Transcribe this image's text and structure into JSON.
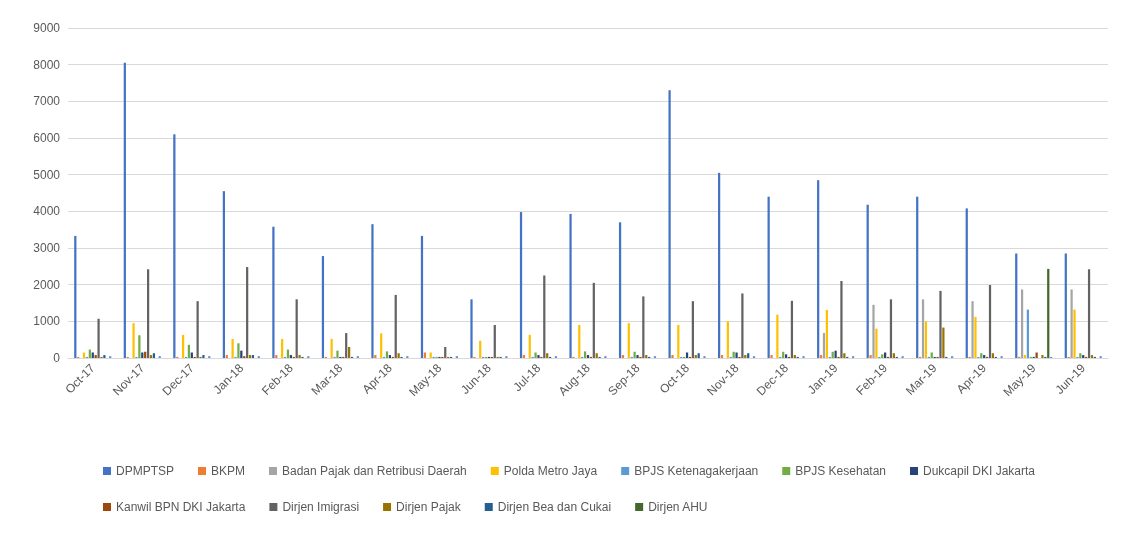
{
  "chart_data": {
    "type": "bar",
    "categories": [
      "Oct-17",
      "Nov-17",
      "Dec-17",
      "Jan-18",
      "Feb-18",
      "Mar-18",
      "Apr-18",
      "May-18",
      "Jun-18",
      "Jul-18",
      "Aug-18",
      "Sep-18",
      "Oct-18",
      "Nov-18",
      "Dec-18",
      "Jan-19",
      "Feb-19",
      "Mar-19",
      "Apr-19",
      "May-19",
      "Jun-19"
    ],
    "series": [
      {
        "name": "DPMPTSP",
        "color": "#4472c4",
        "values": [
          3330,
          8050,
          6100,
          4550,
          3580,
          2780,
          3650,
          3330,
          1600,
          3980,
          3930,
          3700,
          7300,
          5050,
          4400,
          4850,
          4180,
          4400,
          4080,
          2850,
          2850
        ]
      },
      {
        "name": "BKPM",
        "color": "#ed7d31",
        "values": [
          30,
          30,
          30,
          80,
          80,
          30,
          80,
          150,
          30,
          80,
          30,
          80,
          80,
          80,
          80,
          80,
          80,
          30,
          30,
          30,
          30
        ]
      },
      {
        "name": "Badan Pajak dan Retribusi Daerah",
        "color": "#a5a5a5",
        "values": [
          0,
          0,
          0,
          0,
          0,
          0,
          0,
          0,
          0,
          0,
          0,
          0,
          0,
          0,
          0,
          680,
          1450,
          1600,
          1550,
          1870,
          1870
        ]
      },
      {
        "name": "Polda Metro Jaya",
        "color": "#ffc000",
        "values": [
          150,
          950,
          630,
          520,
          520,
          520,
          670,
          150,
          470,
          630,
          900,
          950,
          900,
          1000,
          1180,
          1310,
          800,
          1000,
          1120,
          80,
          1320
        ]
      },
      {
        "name": "BPJS Ketenagakerjaan",
        "color": "#5b9bd5",
        "values": [
          30,
          30,
          30,
          30,
          30,
          30,
          30,
          30,
          30,
          30,
          30,
          30,
          30,
          30,
          30,
          30,
          30,
          30,
          30,
          1320,
          30
        ]
      },
      {
        "name": "BPJS Kesehatan",
        "color": "#70ad47",
        "values": [
          230,
          620,
          360,
          400,
          230,
          200,
          180,
          30,
          30,
          150,
          180,
          170,
          30,
          170,
          170,
          170,
          100,
          150,
          130,
          30,
          130
        ]
      },
      {
        "name": "Dukcapil DKI Jakarta",
        "color": "#264478",
        "values": [
          150,
          150,
          150,
          200,
          80,
          30,
          80,
          30,
          30,
          80,
          80,
          80,
          150,
          150,
          100,
          200,
          150,
          30,
          80,
          30,
          80
        ]
      },
      {
        "name": "Kanwil BPN DKI Jakarta",
        "color": "#9e480e",
        "values": [
          80,
          170,
          30,
          50,
          30,
          30,
          30,
          30,
          30,
          30,
          30,
          30,
          30,
          30,
          30,
          30,
          30,
          30,
          30,
          150,
          30
        ]
      },
      {
        "name": "Dirjen Imigrasi",
        "color": "#636363",
        "values": [
          1070,
          2420,
          1550,
          2480,
          1600,
          680,
          1720,
          300,
          900,
          2250,
          2050,
          1680,
          1550,
          1760,
          1560,
          2100,
          1600,
          1830,
          1990,
          0,
          2420
        ]
      },
      {
        "name": "Dirjen Pajak",
        "color": "#997300",
        "values": [
          30,
          80,
          30,
          80,
          80,
          300,
          130,
          30,
          30,
          130,
          130,
          80,
          80,
          80,
          80,
          130,
          130,
          830,
          130,
          80,
          80
        ]
      },
      {
        "name": "Dirjen Bea dan Cukai",
        "color": "#255e91",
        "values": [
          80,
          130,
          80,
          80,
          30,
          30,
          30,
          30,
          30,
          30,
          30,
          30,
          130,
          130,
          30,
          30,
          30,
          30,
          30,
          30,
          30
        ]
      },
      {
        "name": "Dirjen AHU",
        "color": "#43682b",
        "values": [
          0,
          0,
          0,
          0,
          0,
          0,
          0,
          0,
          0,
          0,
          0,
          0,
          0,
          0,
          0,
          0,
          0,
          0,
          0,
          2430,
          0
        ]
      },
      {
        "color": "#698ed0",
        "values": [
          50,
          50,
          50,
          50,
          50,
          50,
          50,
          50,
          50,
          50,
          50,
          50,
          50,
          50,
          50,
          50,
          50,
          50,
          50,
          30,
          50
        ]
      }
    ],
    "ylim": [
      0,
      9000
    ],
    "yticks": [
      0,
      1000,
      2000,
      3000,
      4000,
      5000,
      6000,
      7000,
      8000,
      9000
    ],
    "grid": "y",
    "legend": "bottom"
  }
}
